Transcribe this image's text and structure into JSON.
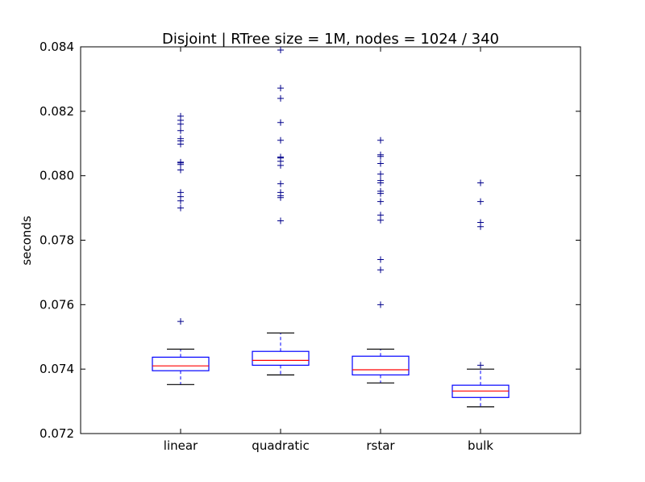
{
  "chart_data": {
    "type": "box",
    "title": "Disjoint | RTree size = 1M, nodes = 1024 / 340",
    "xlabel": "",
    "ylabel": "seconds",
    "ylim": [
      0.072,
      0.084
    ],
    "yticks": [
      "0.072",
      "0.074",
      "0.076",
      "0.078",
      "0.080",
      "0.082",
      "0.084"
    ],
    "categories": [
      "linear",
      "quadratic",
      "rstar",
      "bulk"
    ],
    "grid": false,
    "colors": {
      "box": "#0000ff",
      "median": "#ff0000",
      "whisker": "#000000",
      "flier": "#00008b"
    },
    "boxes": [
      {
        "label": "linear",
        "whisker_low": 0.07352,
        "q1": 0.07395,
        "median": 0.0741,
        "q3": 0.07437,
        "whisker_high": 0.07462,
        "fliers": [
          0.07548,
          0.079,
          0.07922,
          0.07935,
          0.07948,
          0.08018,
          0.08035,
          0.0804,
          0.08042,
          0.08098,
          0.08108,
          0.08115,
          0.0814,
          0.0816,
          0.08172,
          0.08185
        ]
      },
      {
        "label": "quadratic",
        "whisker_low": 0.07382,
        "q1": 0.07412,
        "median": 0.07427,
        "q3": 0.07455,
        "whisker_high": 0.07512,
        "fliers": [
          0.0786,
          0.07932,
          0.07938,
          0.07948,
          0.07975,
          0.08032,
          0.08045,
          0.08055,
          0.08058,
          0.0811,
          0.08165,
          0.0824,
          0.08272,
          0.0839
        ]
      },
      {
        "label": "rstar",
        "whisker_low": 0.07357,
        "q1": 0.07382,
        "median": 0.07398,
        "q3": 0.0744,
        "whisker_high": 0.07462,
        "fliers": [
          0.076,
          0.07708,
          0.0774,
          0.07862,
          0.07878,
          0.0792,
          0.07945,
          0.07952,
          0.07978,
          0.07985,
          0.08005,
          0.08038,
          0.0806,
          0.08065,
          0.0811
        ]
      },
      {
        "label": "bulk",
        "whisker_low": 0.07283,
        "q1": 0.07312,
        "median": 0.07332,
        "q3": 0.0735,
        "whisker_high": 0.074,
        "fliers": [
          0.07412,
          0.07842,
          0.07855,
          0.0792,
          0.07978
        ]
      }
    ]
  }
}
